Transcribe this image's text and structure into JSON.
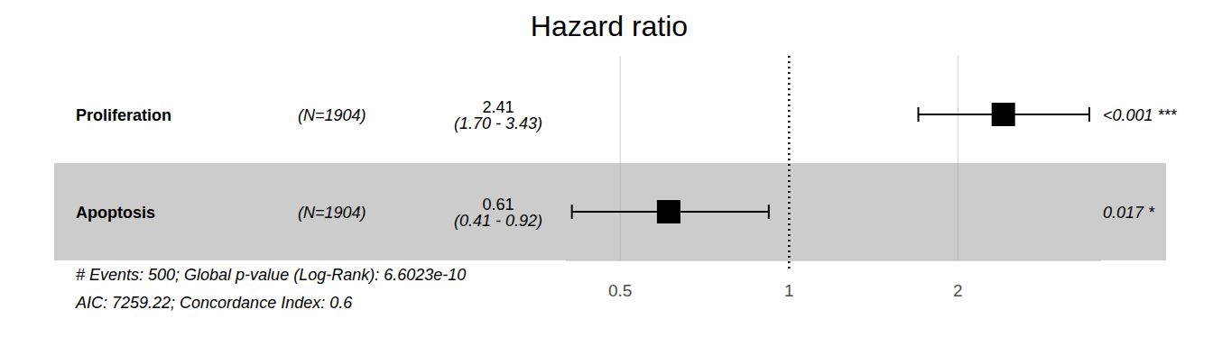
{
  "chart_data": {
    "type": "forest",
    "title": "Hazard ratio",
    "log": "x",
    "grid": true,
    "color": "#000000",
    "xlim": [
      0.4,
      3.6
    ],
    "xticks": [
      0.5,
      1,
      2
    ],
    "reference_line": 1,
    "rows": [
      {
        "name": "Proliferation",
        "n_label": "(N=1904)",
        "estimate": 2.41,
        "lower": 1.7,
        "upper": 3.43,
        "estimate_label": "2.41",
        "ci_label": "(1.70 - 3.43)",
        "p_label": "<0.001 ***"
      },
      {
        "name": "Apoptosis",
        "n_label": "(N=1904)",
        "estimate": 0.61,
        "lower": 0.41,
        "upper": 0.92,
        "estimate_label": "0.61",
        "ci_label": "(0.41 - 0.92)",
        "p_label": "0.017 *"
      }
    ],
    "footnotes": [
      "# Events: 500; Global p-value (Log-Rank): 6.6023e-10",
      "AIC: 7259.22; Concordance Index: 0.6"
    ]
  }
}
